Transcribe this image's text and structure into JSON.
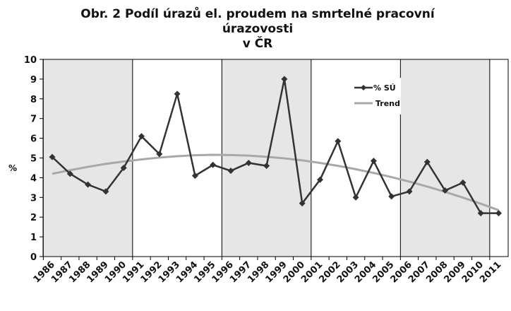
{
  "chart_data": {
    "type": "line",
    "title_lines": [
      "Obr. 2  Podíl úrazů el. proudem na smrtelné pracovní",
      "úrazovosti",
      "v ČR"
    ],
    "ylabel": "%",
    "xlabel": "",
    "ylim": [
      0,
      10
    ],
    "yticks": [
      "0",
      "1",
      "2",
      "3",
      "4",
      "5",
      "6",
      "7",
      "8",
      "9",
      "10"
    ],
    "categories": [
      "1986",
      "1987",
      "1988",
      "1989",
      "1990",
      "1991",
      "1992",
      "1993",
      "1994",
      "1995",
      "1996",
      "1997",
      "1998",
      "1999",
      "2000",
      "2001",
      "2002",
      "2003",
      "2004",
      "2005",
      "2006",
      "2007",
      "2008",
      "2009",
      "2010",
      "2011"
    ],
    "series": [
      {
        "name": "% SÚ",
        "color": "#333333",
        "marker": "diamond",
        "values": [
          5.05,
          4.2,
          3.65,
          3.3,
          4.5,
          6.1,
          5.2,
          8.25,
          4.1,
          4.65,
          4.35,
          4.75,
          4.6,
          9.0,
          2.7,
          3.9,
          5.85,
          3.0,
          4.85,
          3.05,
          3.3,
          4.8,
          3.35,
          3.75,
          2.2,
          2.2
        ]
      },
      {
        "name": "Trend",
        "color": "#a8a8a8",
        "marker": "none",
        "values": [
          4.2,
          4.38,
          4.55,
          4.7,
          4.82,
          4.93,
          5.02,
          5.09,
          5.14,
          5.16,
          5.15,
          5.12,
          5.06,
          4.98,
          4.88,
          4.75,
          4.6,
          4.43,
          4.24,
          4.03,
          3.8,
          3.55,
          3.28,
          2.99,
          2.68,
          2.35
        ]
      }
    ],
    "shaded_bands": [
      [
        "1986",
        "1990"
      ],
      [
        "1996",
        "2000"
      ],
      [
        "2006",
        "2010"
      ]
    ],
    "grid": false,
    "legend_position": "top-right-inside"
  }
}
